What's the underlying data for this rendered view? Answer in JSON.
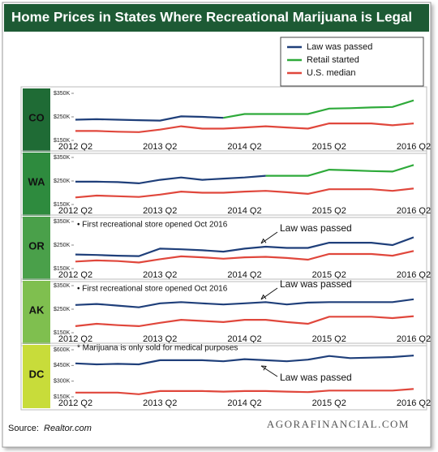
{
  "title": "Home Prices in States Where Recreational Marijuana is Legal",
  "source_label": "Source:",
  "source": "Realtor.com",
  "credit": "AGORAFINANCIAL.COM",
  "chart_data": [
    {
      "type": "line",
      "label": "CO",
      "categories": [
        "2012 Q2",
        null,
        null,
        null,
        "2013 Q2",
        null,
        null,
        null,
        "2014 Q2",
        null,
        null,
        null,
        "2015 Q2",
        null,
        null,
        null,
        "2016 Q2"
      ],
      "ylim": [
        150,
        350
      ],
      "yticks": [
        {
          "value": 350,
          "label": "$350K"
        },
        {
          "value": 250,
          "label": "$250K"
        },
        {
          "value": 150,
          "label": "$150K"
        }
      ],
      "series": [
        {
          "name": "Law was passed",
          "color": "#1f3f7a",
          "values": [
            238,
            240,
            238,
            236,
            234,
            252,
            250,
            246,
            null,
            null,
            null,
            null,
            null,
            null,
            null,
            null,
            null
          ]
        },
        {
          "name": "Retail started",
          "color": "#2eaa3a",
          "values": [
            null,
            null,
            null,
            null,
            null,
            null,
            null,
            246,
            262,
            262,
            262,
            262,
            285,
            287,
            290,
            292,
            320
          ]
        },
        {
          "name": "U.S. median",
          "color": "#e0473c",
          "values": [
            190,
            190,
            187,
            185,
            196,
            210,
            200,
            200,
            205,
            210,
            205,
            200,
            222,
            222,
            222,
            214,
            222
          ]
        }
      ]
    },
    {
      "type": "line",
      "label": "WA",
      "categories": [
        "2012 Q2",
        null,
        null,
        null,
        "2013 Q2",
        null,
        null,
        null,
        "2014 Q2",
        null,
        null,
        null,
        "2015 Q2",
        null,
        null,
        null,
        "2016 Q2"
      ],
      "ylim": [
        150,
        350
      ],
      "yticks": [
        {
          "value": 350,
          "label": "$350K"
        },
        {
          "value": 250,
          "label": "$250K"
        },
        {
          "value": 150,
          "label": "$150K"
        }
      ],
      "series": [
        {
          "name": "Law was passed",
          "color": "#1f3f7a",
          "values": [
            247,
            247,
            245,
            240,
            255,
            265,
            255,
            260,
            265,
            272,
            null,
            null,
            null,
            null,
            null,
            null,
            null
          ]
        },
        {
          "name": "Retail started",
          "color": "#2eaa3a",
          "values": [
            null,
            null,
            null,
            null,
            null,
            null,
            null,
            null,
            null,
            272,
            272,
            272,
            298,
            295,
            292,
            290,
            318
          ]
        },
        {
          "name": "U.S. median",
          "color": "#e0473c",
          "values": [
            180,
            188,
            185,
            182,
            192,
            205,
            200,
            200,
            205,
            208,
            202,
            195,
            215,
            215,
            215,
            208,
            218
          ]
        }
      ]
    },
    {
      "type": "line",
      "label": "OR",
      "categories": [
        "2012 Q2",
        null,
        null,
        null,
        "2013 Q2",
        null,
        null,
        null,
        "2014 Q2",
        null,
        null,
        null,
        "2015 Q2",
        null,
        null,
        null,
        "2016 Q2"
      ],
      "ylim": [
        150,
        350
      ],
      "yticks": [
        {
          "value": 350,
          "label": "$350K"
        },
        {
          "value": 250,
          "label": "$250K"
        },
        {
          "value": 150,
          "label": "$150K"
        }
      ],
      "annotations": [
        "• First recreational store opened Oct 2016",
        "Law was passed"
      ],
      "series": [
        {
          "name": "Law was passed",
          "color": "#1f3f7a",
          "values": [
            210,
            208,
            205,
            203,
            235,
            232,
            228,
            222,
            235,
            243,
            238,
            238,
            260,
            260,
            260,
            250,
            283
          ]
        },
        {
          "name": "U.S. median",
          "color": "#e0473c",
          "values": [
            180,
            185,
            182,
            176,
            190,
            202,
            198,
            192,
            198,
            200,
            195,
            188,
            212,
            212,
            212,
            205,
            225
          ]
        }
      ]
    },
    {
      "type": "line",
      "label": "AK",
      "categories": [
        "2012 Q2",
        null,
        null,
        null,
        "2013 Q2",
        null,
        null,
        null,
        "2014 Q2",
        null,
        null,
        null,
        "2015 Q2",
        null,
        null,
        null,
        "2016 Q2"
      ],
      "ylim": [
        150,
        350
      ],
      "yticks": [
        {
          "value": 350,
          "label": "$350K"
        },
        {
          "value": 250,
          "label": "$250K"
        },
        {
          "value": 150,
          "label": "$150K"
        }
      ],
      "annotations": [
        "• First recreational store opened Oct 2016",
        "Law was passed"
      ],
      "series": [
        {
          "name": "Law was passed",
          "color": "#1f3f7a",
          "values": [
            268,
            272,
            265,
            258,
            275,
            280,
            275,
            270,
            275,
            280,
            270,
            278,
            280,
            280,
            280,
            280,
            292
          ]
        },
        {
          "name": "U.S. median",
          "color": "#e0473c",
          "values": [
            178,
            188,
            182,
            178,
            192,
            205,
            200,
            195,
            205,
            205,
            195,
            188,
            218,
            218,
            218,
            212,
            220
          ]
        }
      ]
    },
    {
      "type": "line",
      "label": "DC",
      "categories": [
        "2012 Q2",
        null,
        null,
        null,
        "2013 Q2",
        null,
        null,
        null,
        "2014 Q2",
        null,
        null,
        null,
        "2015 Q2",
        null,
        null,
        null,
        "2016 Q2"
      ],
      "ylim": [
        150,
        600
      ],
      "yticks": [
        {
          "value": 600,
          "label": "$600K"
        },
        {
          "value": 450,
          "label": "$450K"
        },
        {
          "value": 300,
          "label": "$300K"
        },
        {
          "value": 150,
          "label": "$150K"
        }
      ],
      "annotations": [
        "* Marijuana is only sold for medical purposes",
        "Law was passed"
      ],
      "series": [
        {
          "name": "Law was passed",
          "color": "#1f3f7a",
          "values": [
            470,
            460,
            465,
            460,
            500,
            500,
            500,
            490,
            510,
            500,
            490,
            505,
            540,
            520,
            525,
            530,
            545
          ]
        },
        {
          "name": "U.S. median",
          "color": "#e0473c",
          "values": [
            190,
            190,
            190,
            175,
            205,
            205,
            205,
            200,
            205,
            205,
            200,
            195,
            210,
            210,
            210,
            210,
            225
          ]
        }
      ]
    }
  ]
}
